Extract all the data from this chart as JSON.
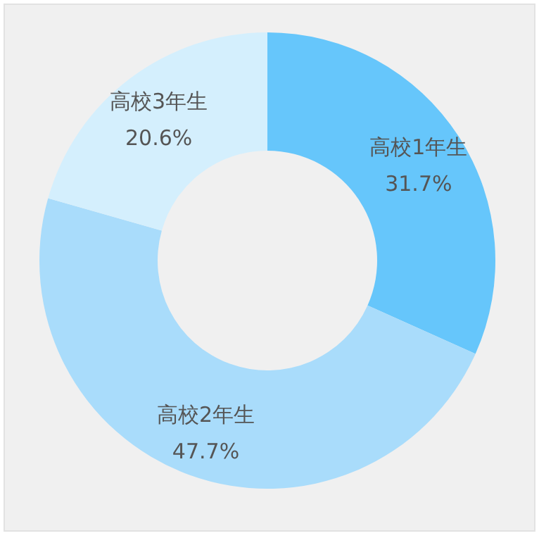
{
  "chart_data": {
    "type": "donut",
    "categories": [
      "高校1年生",
      "高校2年生",
      "高校3年生"
    ],
    "values": [
      31.7,
      47.7,
      20.6
    ],
    "colors": [
      "#66c6fb",
      "#a9dcfb",
      "#d4effd"
    ],
    "value_labels": [
      "31.7%",
      "47.7%",
      "20.6%"
    ]
  }
}
